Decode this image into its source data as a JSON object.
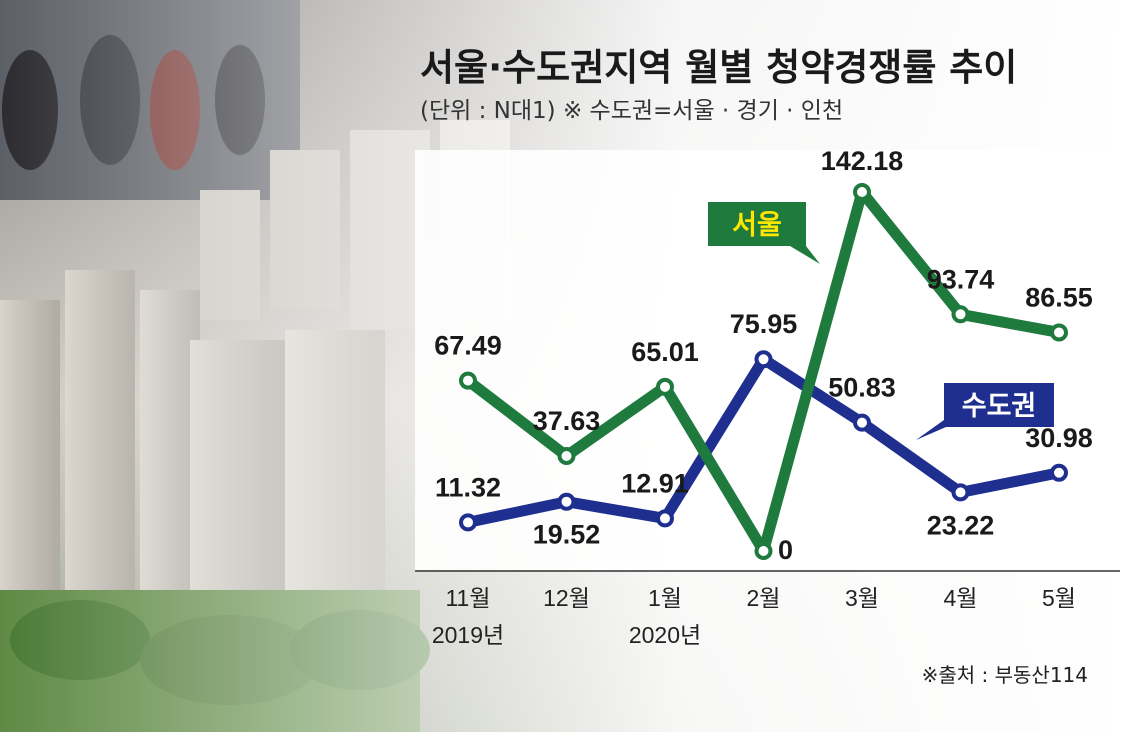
{
  "title": "서울·수도권지역 월별 청약경쟁률 추이",
  "subtitle": "(단위 : N대1)  ※ 수도권=서울 · 경기 · 인천",
  "source": "※출처 : 부동산114",
  "colors": {
    "seoul": "#1f7a3e",
    "metro": "#1f2f8f",
    "seoul_label_text": "#ffe600",
    "metro_label_text": "#ffffff"
  },
  "chart_data": {
    "type": "line",
    "categories": [
      "11월",
      "12월",
      "1월",
      "2월",
      "3월",
      "4월",
      "5월"
    ],
    "category_sublabels": [
      "2019년",
      "",
      "2020년",
      "",
      "",
      "",
      ""
    ],
    "series": [
      {
        "name": "서울",
        "values": [
          67.49,
          37.63,
          65.01,
          0,
          142.18,
          93.74,
          86.55
        ],
        "labels": [
          "67.49",
          "37.63",
          "65.01",
          "0",
          "142.18",
          "93.74",
          "86.55"
        ]
      },
      {
        "name": "수도권",
        "values": [
          11.32,
          19.52,
          12.91,
          75.95,
          50.83,
          23.22,
          30.98
        ],
        "labels": [
          "11.32",
          "19.52",
          "12.91",
          "75.95",
          "50.83",
          "23.22",
          "30.98"
        ]
      }
    ],
    "ylim": [
      0,
      142.18
    ],
    "xlabel": "",
    "ylabel": "",
    "grid": false,
    "legend": "inline"
  }
}
